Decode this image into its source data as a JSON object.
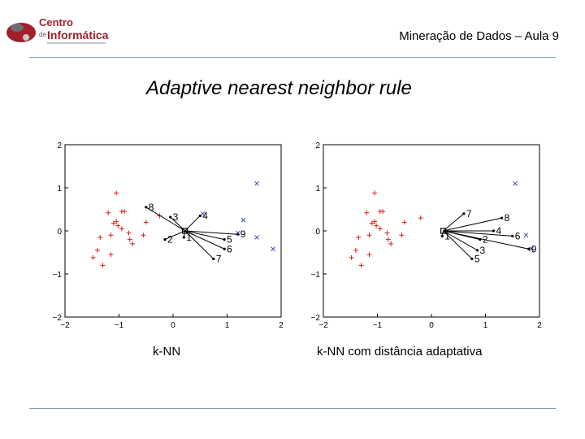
{
  "header": {
    "title": "Mineração de Dados – Aula 9"
  },
  "logo": {
    "line1": "Centro",
    "line2": "de",
    "line3": "Informática"
  },
  "slide": {
    "title": "Adaptive nearest neighbor rule"
  },
  "colors": {
    "plus": "#d62020",
    "x": "#3a46c8",
    "frame": "#000000",
    "rule": "#7f9fb8"
  },
  "chart_data": [
    {
      "type": "scatter",
      "xlim": [
        -2,
        2
      ],
      "ylim": [
        -2,
        2
      ],
      "xticks": [
        "−2",
        "−1",
        "0",
        "1",
        "2"
      ],
      "yticks": [
        "2",
        "1",
        "0",
        "−1",
        "−2"
      ],
      "query": [
        0.22,
        0.0
      ],
      "plus_points": [
        [
          -1.05,
          0.88
        ],
        [
          -1.2,
          0.42
        ],
        [
          -0.95,
          0.45
        ],
        [
          -1.05,
          0.22
        ],
        [
          -1.02,
          0.12
        ],
        [
          -1.1,
          0.18
        ],
        [
          -0.95,
          0.05
        ],
        [
          -0.82,
          -0.05
        ],
        [
          -0.8,
          -0.2
        ],
        [
          -0.75,
          -0.3
        ],
        [
          -1.15,
          -0.1
        ],
        [
          -1.35,
          -0.15
        ],
        [
          -1.4,
          -0.45
        ],
        [
          -1.15,
          -0.55
        ],
        [
          -1.48,
          -0.62
        ],
        [
          -1.3,
          -0.8
        ],
        [
          -0.55,
          -0.1
        ],
        [
          -0.25,
          0.35
        ],
        [
          -0.9,
          0.45
        ],
        [
          -0.5,
          0.2
        ]
      ],
      "x_points": [
        [
          1.55,
          1.1
        ],
        [
          1.3,
          0.25
        ],
        [
          1.2,
          -0.05
        ],
        [
          1.55,
          -0.15
        ],
        [
          1.85,
          -0.42
        ],
        [
          0.55,
          0.4
        ]
      ],
      "neighbors": [
        {
          "label": "1",
          "x": 0.2,
          "y": -0.15
        },
        {
          "label": "2",
          "x": -0.15,
          "y": -0.2
        },
        {
          "label": "3",
          "x": -0.05,
          "y": 0.32
        },
        {
          "label": "4",
          "x": 0.5,
          "y": 0.35
        },
        {
          "label": "5",
          "x": 0.95,
          "y": -0.2
        },
        {
          "label": "6",
          "x": 0.95,
          "y": -0.42
        },
        {
          "label": "7",
          "x": 0.75,
          "y": -0.65
        },
        {
          "label": "8",
          "x": -0.5,
          "y": 0.55
        },
        {
          "label": "9",
          "x": 1.2,
          "y": -0.08
        }
      ],
      "caption": "k-NN"
    },
    {
      "type": "scatter",
      "xlim": [
        -2,
        2
      ],
      "ylim": [
        -2,
        2
      ],
      "xticks": [
        "−2",
        "−1",
        "0",
        "1",
        "2"
      ],
      "yticks": [
        "2",
        "1",
        "0",
        "−1",
        "−2"
      ],
      "query": [
        0.22,
        0.0
      ],
      "plus_points": [
        [
          -1.05,
          0.88
        ],
        [
          -1.2,
          0.42
        ],
        [
          -0.95,
          0.45
        ],
        [
          -1.05,
          0.22
        ],
        [
          -1.02,
          0.12
        ],
        [
          -1.1,
          0.18
        ],
        [
          -0.95,
          0.05
        ],
        [
          -0.82,
          -0.05
        ],
        [
          -0.8,
          -0.2
        ],
        [
          -0.75,
          -0.3
        ],
        [
          -1.15,
          -0.1
        ],
        [
          -1.35,
          -0.15
        ],
        [
          -1.4,
          -0.45
        ],
        [
          -1.15,
          -0.55
        ],
        [
          -1.48,
          -0.62
        ],
        [
          -1.3,
          -0.8
        ],
        [
          -0.55,
          -0.1
        ],
        [
          -0.2,
          0.3
        ],
        [
          -0.9,
          0.45
        ],
        [
          -0.5,
          0.2
        ]
      ],
      "x_points": [
        [
          1.55,
          1.1
        ],
        [
          1.85,
          -0.42
        ],
        [
          1.75,
          -0.1
        ]
      ],
      "neighbors": [
        {
          "label": "1",
          "x": 0.2,
          "y": -0.12
        },
        {
          "label": "2",
          "x": 0.9,
          "y": -0.2
        },
        {
          "label": "3",
          "x": 0.85,
          "y": -0.45
        },
        {
          "label": "4",
          "x": 1.15,
          "y": 0.0
        },
        {
          "label": "5",
          "x": 0.75,
          "y": -0.65
        },
        {
          "label": "6",
          "x": 1.5,
          "y": -0.12
        },
        {
          "label": "7",
          "x": 0.6,
          "y": 0.4
        },
        {
          "label": "8",
          "x": 1.3,
          "y": 0.3
        },
        {
          "label": "9",
          "x": 1.8,
          "y": -0.42
        }
      ],
      "caption": "k-NN com distância adaptativa"
    }
  ]
}
